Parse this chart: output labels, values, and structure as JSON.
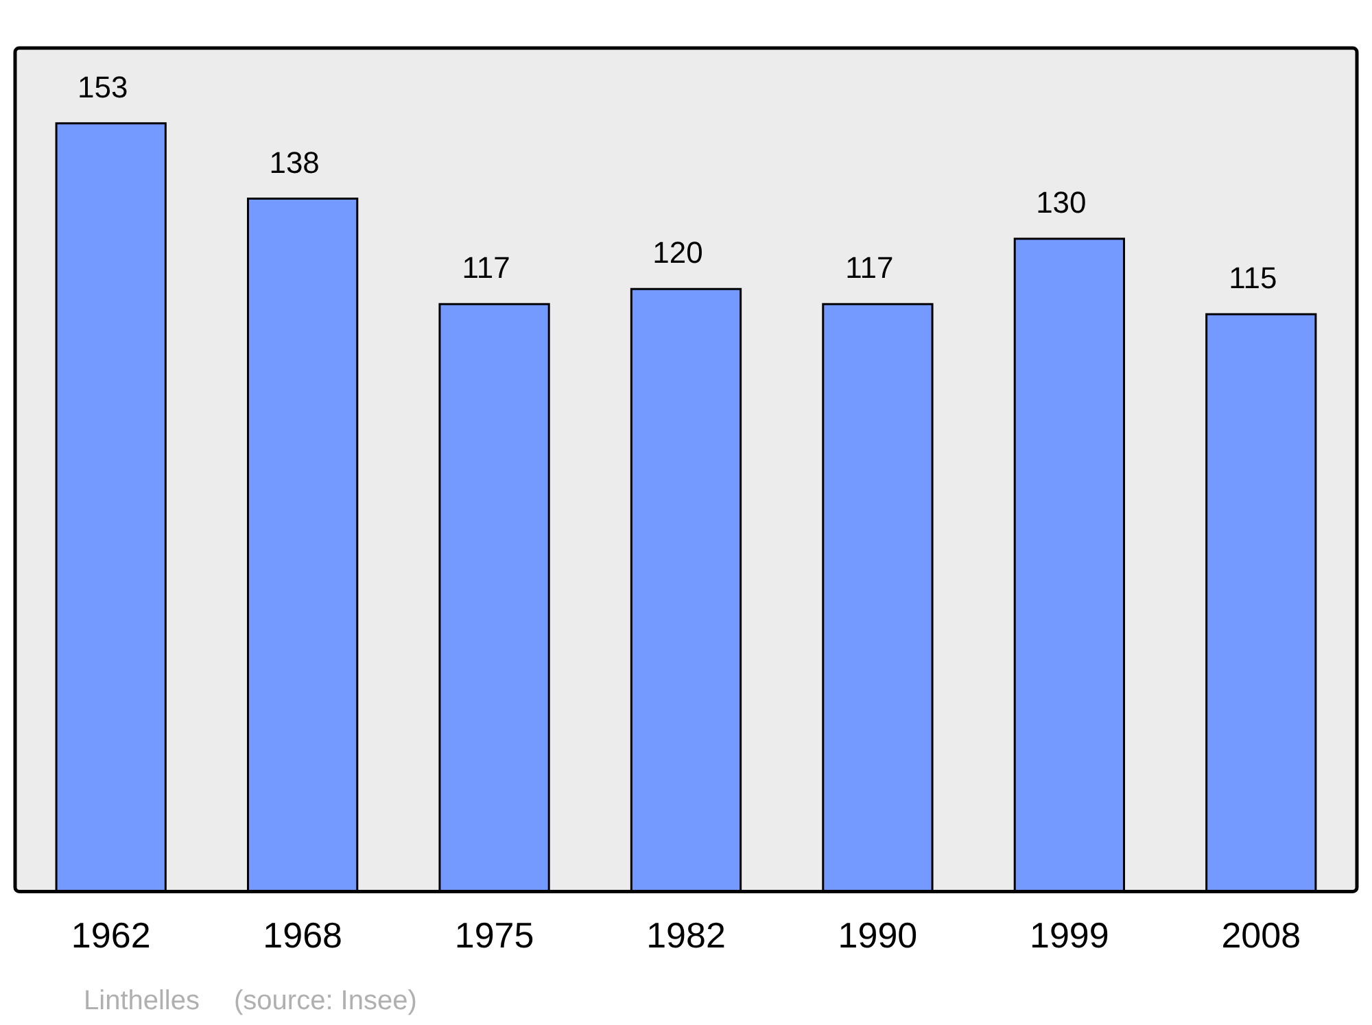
{
  "chart_data": {
    "type": "bar",
    "categories": [
      "1962",
      "1968",
      "1975",
      "1982",
      "1990",
      "1999",
      "2008"
    ],
    "values": [
      153,
      138,
      117,
      120,
      117,
      130,
      115
    ],
    "color": "#7499ff",
    "ylim": [
      0,
      168
    ],
    "data_labels": true,
    "grid": false,
    "legend": false,
    "annotations": [
      "Linthelles",
      "(source: Insee)"
    ]
  }
}
